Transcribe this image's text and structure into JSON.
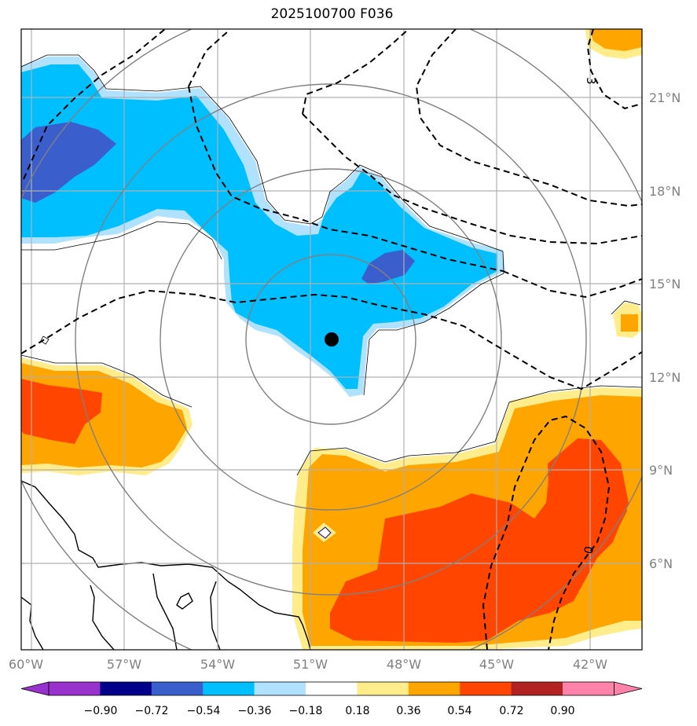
{
  "title": "2025100700 F036",
  "map": {
    "lon_labels": [
      "60°W",
      "57°W",
      "54°W",
      "51°W",
      "48°W",
      "45°W",
      "42°W"
    ],
    "lat_labels": [
      "21°N",
      "18°N",
      "15°N",
      "12°N",
      "9°N",
      "6°N"
    ],
    "contour_labels": [
      "3",
      "0"
    ],
    "center_marker": {
      "lon": "50.3°W",
      "lat": "13.2°N"
    },
    "range_rings": 4
  },
  "colorbar": {
    "ticks": [
      "−0.90",
      "−0.72",
      "−0.54",
      "−0.36",
      "−0.18",
      "0.18",
      "0.36",
      "0.54",
      "0.72",
      "0.90"
    ],
    "colors": [
      "#9932cc",
      "#00008b",
      "#3a5fcd",
      "#00bfff",
      "#b0e2ff",
      "#ffffff",
      "#ffec8b",
      "#ffa500",
      "#ff4500",
      "#b22222",
      "#ff82ab"
    ]
  }
}
